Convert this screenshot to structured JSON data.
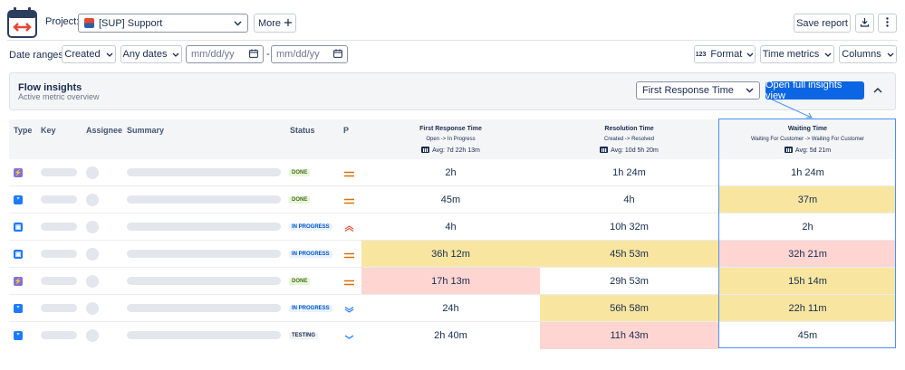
{
  "header": {
    "project_label": "Project:",
    "project_value": "[SUP] Support",
    "more_label": "More",
    "save_report_label": "Save report"
  },
  "filters": {
    "date_ranges_label": "Date ranges:",
    "created_label": "Created",
    "dates_label": "Any dates",
    "date_from_placeholder": "mm/dd/yy",
    "date_sep": "-",
    "date_to_placeholder": "mm/dd/yy",
    "format_label": "Format",
    "format_icon_text": "123",
    "time_metrics_label": "Time metrics",
    "columns_label": "Columns"
  },
  "insights": {
    "title": "Flow insights",
    "subtitle": "Active metric overview",
    "metric_selected": "First Response Time",
    "open_button": "Open full insights view"
  },
  "table": {
    "headers": {
      "type": "Type",
      "key": "Key",
      "assignee": "Assignee",
      "summary": "Summary",
      "status": "Status",
      "priority": "P"
    },
    "metrics": [
      {
        "title": "First Response Time",
        "sub": "Open -> In Progress",
        "avg": "Avg: 7d 22h 13m"
      },
      {
        "title": "Resolution Time",
        "sub": "Created -> Resolved",
        "avg": "Avg: 10d 5h 20m"
      },
      {
        "title": "Waiting Time",
        "sub": "Waiting For Customer -> Waiting For Customer",
        "avg": "Avg: 5d 21m"
      }
    ],
    "rows": [
      {
        "type": "task",
        "status": "DONE",
        "priority": "medium",
        "frt": "2h",
        "rt": "1h 24m",
        "wt": "1h 24m",
        "hl": [
          "",
          "",
          ""
        ]
      },
      {
        "type": "quote",
        "status": "DONE",
        "priority": "medium",
        "frt": "45m",
        "rt": "4h",
        "wt": "37m",
        "hl": [
          "",
          "",
          "y"
        ]
      },
      {
        "type": "support",
        "status": "IN PROGRESS",
        "priority": "high",
        "frt": "4h",
        "rt": "10h 32m",
        "wt": "2h",
        "hl": [
          "",
          "",
          ""
        ]
      },
      {
        "type": "support",
        "status": "IN PROGRESS",
        "priority": "medium",
        "frt": "36h 12m",
        "rt": "45h 53m",
        "wt": "32h 21m",
        "hl": [
          "y",
          "y",
          "r"
        ]
      },
      {
        "type": "task",
        "status": "DONE",
        "priority": "medium",
        "frt": "17h 13m",
        "rt": "29h 53m",
        "wt": "15h 14m",
        "hl": [
          "r",
          "",
          "y"
        ]
      },
      {
        "type": "quote",
        "status": "IN PROGRESS",
        "priority": "low",
        "frt": "24h",
        "rt": "56h 58m",
        "wt": "22h 11m",
        "hl": [
          "",
          "y",
          "y"
        ]
      },
      {
        "type": "quote",
        "status": "TESTING",
        "priority": "lowest",
        "frt": "2h 40m",
        "rt": "11h 43m",
        "wt": "45m",
        "hl": [
          "",
          "r",
          ""
        ]
      }
    ]
  },
  "colors": {
    "accent": "#0c66e4",
    "highlight_yellow": "#f8e6a0",
    "highlight_red": "#ffd5d2",
    "selected_column_border": "#4c8ff5"
  }
}
